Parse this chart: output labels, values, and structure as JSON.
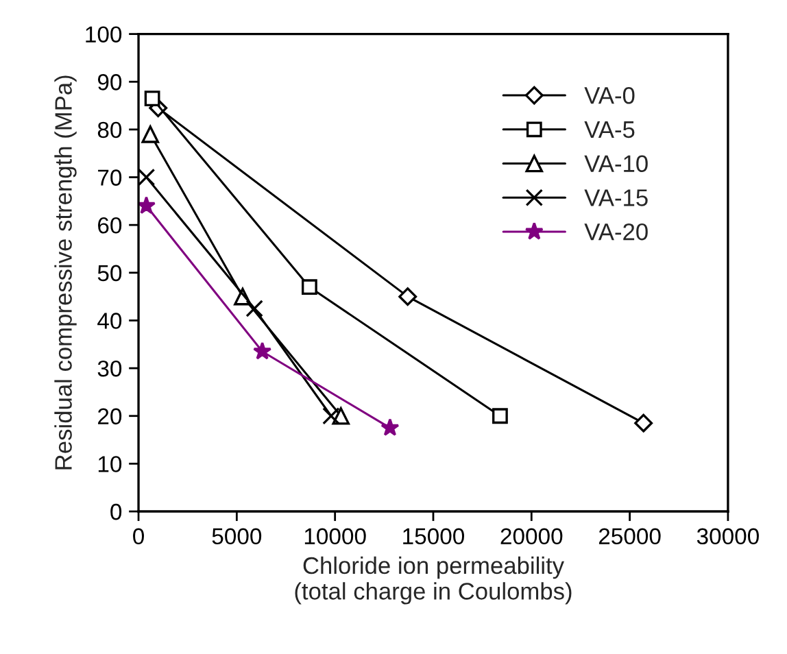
{
  "chart_data": {
    "type": "line",
    "xlabel": "Chloride ion permeability\n(total charge in Coulombs)",
    "ylabel": "Residual compressive strength (MPa)",
    "xlim": [
      0,
      30000
    ],
    "xticks": [
      0,
      5000,
      10000,
      15000,
      20000,
      25000,
      30000
    ],
    "ylim": [
      0,
      100
    ],
    "yticks": [
      0,
      10,
      20,
      30,
      40,
      50,
      60,
      70,
      80,
      90,
      100
    ],
    "grid": false,
    "legend": "top right",
    "series": [
      {
        "name": "VA-0",
        "color": "#000000",
        "marker": "diamond",
        "x": [
          1000,
          13700,
          25700
        ],
        "values": [
          84.5,
          45,
          18.5
        ]
      },
      {
        "name": "VA-5",
        "color": "#000000",
        "marker": "square",
        "x": [
          700,
          8700,
          18400
        ],
        "values": [
          86.5,
          47,
          20
        ]
      },
      {
        "name": "VA-10",
        "color": "#000000",
        "marker": "triangle",
        "x": [
          600,
          5300,
          10300
        ],
        "values": [
          79,
          45,
          20
        ]
      },
      {
        "name": "VA-15",
        "color": "#000000",
        "marker": "cross",
        "x": [
          400,
          5900,
          9800
        ],
        "values": [
          70,
          42.5,
          20
        ]
      },
      {
        "name": "VA-20",
        "color": "#800080",
        "marker": "star",
        "x": [
          400,
          6300,
          12800
        ],
        "values": [
          64,
          33.5,
          17.5
        ]
      }
    ]
  }
}
